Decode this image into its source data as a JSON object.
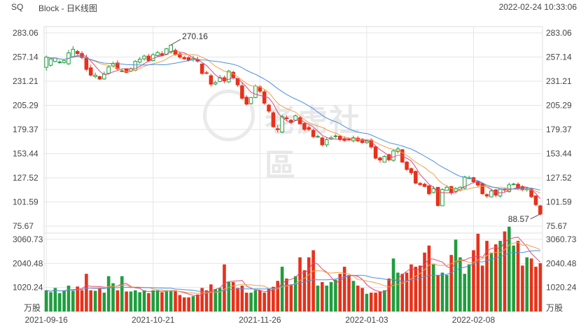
{
  "header": {
    "symbol": "SQ",
    "title": "Block - 日K线图",
    "timestamp": "2022-02-24 10:33:06"
  },
  "watermark_text": "老虎社區",
  "colors": {
    "up": "#1e9e3e",
    "down": "#e8311a",
    "ma_short": "#e0457b",
    "ma_mid": "#f0a045",
    "ma_long": "#4a90e2",
    "grid": "#e6e6e6"
  },
  "chart_data": {
    "type": "candlestick",
    "price_ticks": [
      "283.06",
      "257.14",
      "231.21",
      "205.29",
      "179.37",
      "153.44",
      "127.52",
      "101.59",
      "75.67"
    ],
    "price_range": [
      75.67,
      283.06
    ],
    "volume_ticks": [
      "3060.73",
      "2040.48",
      "1020.24"
    ],
    "volume_unit": "万股",
    "volume_range": [
      0,
      3060.73
    ],
    "x_labels": [
      "2021-09-16",
      "2021-10-21",
      "2021-11-26",
      "2022-01-03",
      "2022-02-08"
    ],
    "x_label_index": [
      0,
      24,
      48,
      72,
      96
    ],
    "annotations": [
      {
        "text": "270.16",
        "index": 28,
        "value": 270.16,
        "side": "right"
      },
      {
        "text": "88.57",
        "index": 111,
        "value": 88.57,
        "side": "left"
      }
    ],
    "opens": [
      246.1,
      248.3,
      252.4,
      251.4,
      251.3,
      249.9,
      257.4,
      263.2,
      261.0,
      256.5,
      245.6,
      236.2,
      236.2,
      233.6,
      239.7,
      247.7,
      250.8,
      242.2,
      244.1,
      242.2,
      243.0,
      251.7,
      255.2,
      258.2,
      253.4,
      258.7,
      260.8,
      260.1,
      262.6,
      264.4,
      260.6,
      256.6,
      256.5,
      254.2,
      254.6,
      249.7,
      240.3,
      237.1,
      228.2,
      230.9,
      235.0,
      230.5,
      240.8,
      233.9,
      226.3,
      214.0,
      207.2,
      213.7,
      225.2,
      219.9,
      205.6,
      197.4,
      180.2,
      176.6,
      191.9,
      189.4,
      189.4,
      192.1,
      185.8,
      181.5,
      178.5,
      171.2,
      170.3,
      162.9,
      169.1,
      171.7,
      172.2,
      169.6,
      168.8,
      167.3,
      170.1,
      169.0,
      165.2,
      168.0,
      160.8,
      148.8,
      144.3,
      152.4,
      146.3,
      155.8,
      157.7,
      144.4,
      137.4,
      134.4,
      121.5,
      120.7,
      119.0,
      111.7,
      117.3,
      97.5,
      114.0,
      118.1,
      112.9,
      114.1,
      116.4,
      126.9,
      127.7,
      123.6,
      121.2,
      109.5,
      107.0,
      114.5,
      108.0,
      115.5,
      112.9,
      120.7,
      120.6,
      118.1,
      114.6,
      115.6,
      108.2,
      97.4
    ],
    "closes": [
      257.1,
      255.1,
      256.1,
      251.8,
      253.3,
      261.6,
      265.5,
      260.8,
      256.6,
      243.9,
      237.7,
      237.7,
      233.5,
      238.8,
      246.5,
      249.9,
      244.5,
      242.3,
      240.6,
      244.5,
      252.5,
      254.9,
      258.2,
      253.1,
      259.6,
      262.0,
      258.9,
      266.0,
      269.9,
      260.1,
      257.0,
      255.2,
      253.7,
      255.5,
      252.7,
      239.5,
      239.7,
      228.0,
      229.8,
      235.2,
      231.4,
      242.0,
      235.4,
      227.3,
      212.9,
      206.6,
      213.7,
      225.9,
      220.4,
      207.6,
      199.1,
      182.3,
      179.1,
      193.1,
      191.0,
      186.8,
      194.0,
      185.4,
      179.4,
      179.5,
      171.7,
      171.9,
      162.9,
      168.4,
      170.4,
      172.5,
      168.5,
      167.6,
      168.4,
      170.6,
      167.2,
      165.4,
      166.9,
      160.6,
      148.6,
      146.6,
      150.5,
      146.8,
      156.4,
      158.5,
      144.3,
      136.5,
      132.9,
      121.8,
      120.2,
      118.2,
      110.4,
      115.8,
      97.7,
      115.0,
      117.4,
      111.3,
      116.1,
      117.5,
      128.4,
      127.5,
      123.3,
      119.6,
      110.4,
      108.0,
      113.4,
      108.9,
      115.3,
      114.5,
      120.0,
      120.8,
      116.5,
      115.2,
      115.4,
      107.2,
      98.7,
      88.6
    ],
    "highs": [
      258.8,
      255.8,
      256.6,
      253.6,
      254.0,
      264.7,
      268.9,
      265.0,
      263.5,
      259.8,
      249.0,
      240.5,
      237.1,
      241.6,
      248.4,
      252.4,
      253.7,
      244.2,
      245.2,
      246.1,
      253.7,
      257.1,
      259.6,
      260.5,
      261.5,
      263.8,
      263.5,
      267.0,
      270.2,
      266.3,
      262.8,
      258.4,
      258.0,
      258.5,
      257.5,
      250.2,
      242.5,
      239.2,
      231.7,
      238.0,
      237.2,
      243.5,
      242.4,
      234.5,
      229.3,
      216.1,
      214.3,
      227.8,
      226.9,
      222.5,
      206.9,
      198.9,
      184.1,
      195.4,
      194.4,
      190.6,
      195.5,
      194.2,
      187.4,
      183.5,
      180.5,
      173.8,
      171.8,
      170.7,
      172.8,
      174.4,
      173.8,
      172.1,
      170.9,
      172.8,
      172.3,
      169.8,
      168.9,
      169.9,
      162.4,
      150.3,
      151.7,
      153.3,
      157.9,
      160.8,
      158.6,
      145.7,
      138.4,
      135.4,
      123.0,
      122.1,
      119.5,
      118.6,
      117.5,
      116.3,
      119.7,
      119.0,
      117.6,
      118.2,
      129.7,
      129.8,
      128.5,
      124.7,
      121.9,
      110.8,
      116.0,
      115.4,
      116.2,
      116.3,
      122.2,
      122.2,
      122.6,
      119.5,
      117.1,
      116.9,
      108.4,
      98.7
    ],
    "lows": [
      242.5,
      246.9,
      251.5,
      250.1,
      250.1,
      248.6,
      256.3,
      259.2,
      254.8,
      242.0,
      236.3,
      234.5,
      232.6,
      232.7,
      239.0,
      246.0,
      242.7,
      240.9,
      239.9,
      240.9,
      241.8,
      250.1,
      253.3,
      252.0,
      252.3,
      257.1,
      257.8,
      259.1,
      260.6,
      258.6,
      255.0,
      254.1,
      252.3,
      252.2,
      251.3,
      238.2,
      238.9,
      225.5,
      226.7,
      230.0,
      229.1,
      229.3,
      233.1,
      225.0,
      211.5,
      205.4,
      206.2,
      212.9,
      218.3,
      205.9,
      197.1,
      181.1,
      176.1,
      175.5,
      189.1,
      184.9,
      188.5,
      184.7,
      177.9,
      177.5,
      170.1,
      170.7,
      161.2,
      160.6,
      168.1,
      170.1,
      166.7,
      166.1,
      167.3,
      165.4,
      165.8,
      163.9,
      164.0,
      158.8,
      147.4,
      143.7,
      144.0,
      145.3,
      144.7,
      153.8,
      143.6,
      135.1,
      130.4,
      120.6,
      118.8,
      117.5,
      108.6,
      110.6,
      96.8,
      97.1,
      113.7,
      109.1,
      111.5,
      112.8,
      115.2,
      126.0,
      121.6,
      117.4,
      109.4,
      106.0,
      106.5,
      106.7,
      106.2,
      111.7,
      111.3,
      119.6,
      114.3,
      113.1,
      112.7,
      105.8,
      97.1,
      87.1
    ],
    "volumes": [
      900,
      820,
      1000,
      780,
      900,
      1100,
      880,
      1060,
      900,
      1600,
      900,
      880,
      1000,
      800,
      1500,
      1200,
      900,
      1500,
      850,
      850,
      900,
      820,
      900,
      780,
      900,
      900,
      820,
      900,
      900,
      900,
      700,
      600,
      600,
      650,
      720,
      1000,
      900,
      1150,
      950,
      1000,
      2000,
      1250,
      1250,
      1000,
      1100,
      800,
      800,
      900,
      900,
      800,
      950,
      1050,
      1300,
      1900,
      1400,
      1150,
      1500,
      2300,
      1750,
      2300,
      2600,
      1100,
      1250,
      1100,
      1250,
      1350,
      1600,
      1900,
      1550,
      1300,
      1100,
      1000,
      750,
      800,
      800,
      850,
      900,
      1400,
      2250,
      1650,
      1600,
      1650,
      2000,
      1900,
      1950,
      2500,
      2800,
      2000,
      1550,
      1650,
      1550,
      2400,
      3050,
      2300,
      1600,
      2000,
      2600,
      3300,
      1950,
      3000,
      2500,
      2850,
      3000,
      3400,
      3600,
      2800,
      3000,
      1950,
      2300,
      2250,
      1900,
      2050
    ]
  }
}
